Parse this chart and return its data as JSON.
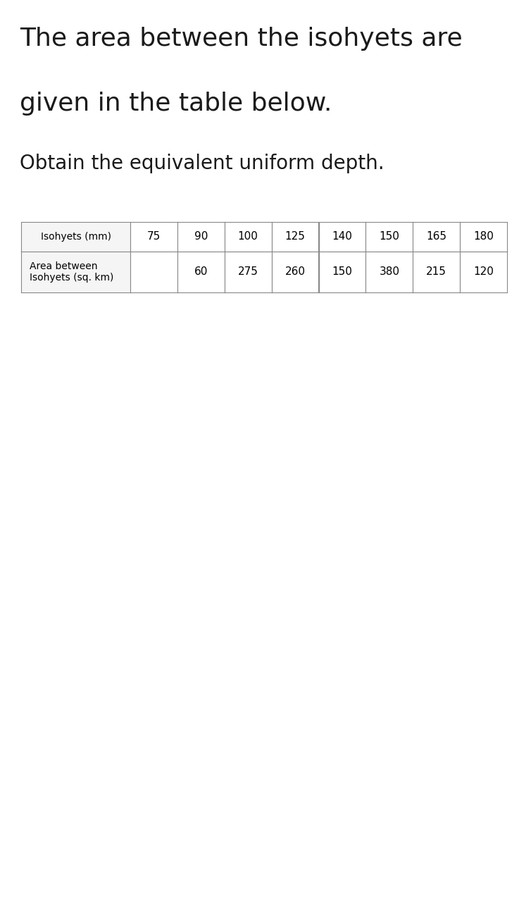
{
  "title_line1": "The area between the isohyets are",
  "title_line2": "given in the table below.",
  "subtitle": "Obtain the equivalent uniform depth.",
  "row1_header": "Isohyets (mm)",
  "row1_values": [
    "75",
    "90",
    "100",
    "125",
    "140",
    "150",
    "165",
    "180"
  ],
  "row2_header": "Area between\nIsohyets (sq. km)",
  "row2_values": [
    "",
    "60",
    "275",
    "260",
    "150",
    "380",
    "215",
    "120"
  ],
  "background_color": "#ffffff",
  "title_fontsize": 26,
  "subtitle_fontsize": 20,
  "table_header_fontsize": 10,
  "table_value_fontsize": 11,
  "title_color": "#1a1a1a",
  "table_border_color": "#888888",
  "header_bg_color": "#f5f5f5",
  "cell_bg_color": "#ffffff"
}
